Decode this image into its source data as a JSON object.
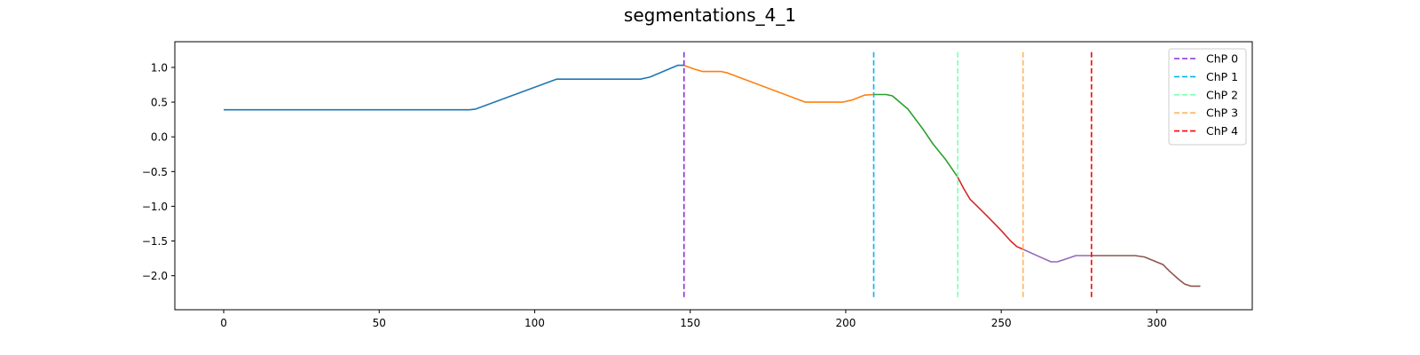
{
  "chart_data": {
    "type": "line",
    "title": "segmentations_4_1",
    "xlabel": "",
    "ylabel": "",
    "xlim": [
      -15.7,
      330.7
    ],
    "ylim": [
      -2.49,
      1.37
    ],
    "x_ticks": [
      0,
      50,
      100,
      150,
      200,
      250,
      300
    ],
    "x_tick_labels": [
      "0",
      "50",
      "100",
      "150",
      "200",
      "250",
      "300"
    ],
    "y_ticks": [
      1.0,
      0.5,
      0.0,
      -0.5,
      -1.0,
      -1.5,
      -2.0
    ],
    "y_tick_labels": [
      "1.0",
      "0.5",
      "0.0",
      "−0.5",
      "−1.0",
      "−1.5",
      "−2.0"
    ],
    "grid": false,
    "legend_position": "top-right",
    "series": [
      {
        "color": "#1f77b4",
        "points": [
          [
            0,
            0.39
          ],
          [
            79,
            0.39
          ],
          [
            81,
            0.4
          ],
          [
            107,
            0.83
          ],
          [
            109,
            0.83
          ],
          [
            134,
            0.83
          ],
          [
            137,
            0.86
          ],
          [
            146,
            1.03
          ],
          [
            148,
            1.03
          ]
        ]
      },
      {
        "color": "#ff7f0e",
        "points": [
          [
            148,
            1.03
          ],
          [
            151,
            0.98
          ],
          [
            154,
            0.94
          ],
          [
            160,
            0.94
          ],
          [
            162,
            0.92
          ],
          [
            187,
            0.5
          ],
          [
            189,
            0.5
          ],
          [
            199,
            0.5
          ],
          [
            202,
            0.53
          ],
          [
            206,
            0.6
          ],
          [
            209,
            0.61
          ]
        ]
      },
      {
        "color": "#2ca02c",
        "points": [
          [
            209,
            0.61
          ],
          [
            213,
            0.61
          ],
          [
            215,
            0.59
          ],
          [
            220,
            0.4
          ],
          [
            225,
            0.1
          ],
          [
            228,
            -0.1
          ],
          [
            232,
            -0.32
          ],
          [
            236,
            -0.58
          ]
        ]
      },
      {
        "color": "#d62728",
        "points": [
          [
            236,
            -0.58
          ],
          [
            238,
            -0.75
          ],
          [
            240,
            -0.9
          ],
          [
            245,
            -1.12
          ],
          [
            250,
            -1.35
          ],
          [
            253,
            -1.5
          ],
          [
            255,
            -1.58
          ],
          [
            257,
            -1.62
          ]
        ]
      },
      {
        "color": "#9467bd",
        "points": [
          [
            257,
            -1.62
          ],
          [
            262,
            -1.72
          ],
          [
            266,
            -1.8
          ],
          [
            268,
            -1.8
          ],
          [
            270,
            -1.77
          ],
          [
            274,
            -1.71
          ],
          [
            279,
            -1.71
          ]
        ]
      },
      {
        "color": "#8c564b",
        "points": [
          [
            279,
            -1.71
          ],
          [
            293,
            -1.71
          ],
          [
            296,
            -1.73
          ],
          [
            302,
            -1.84
          ],
          [
            304,
            -1.93
          ],
          [
            307,
            -2.05
          ],
          [
            309,
            -2.12
          ],
          [
            311,
            -2.15
          ],
          [
            314,
            -2.15
          ]
        ]
      }
    ],
    "change_points": [
      {
        "label": "ChP 0",
        "x": 148,
        "color": "#8a2be2"
      },
      {
        "label": "ChP 1",
        "x": 209,
        "color": "#00b5eb"
      },
      {
        "label": "ChP 2",
        "x": 236,
        "color": "#80ffb4"
      },
      {
        "label": "ChP 3",
        "x": 257,
        "color": "#ffb360"
      },
      {
        "label": "ChP 4",
        "x": 279,
        "color": "#ff0000"
      }
    ]
  }
}
